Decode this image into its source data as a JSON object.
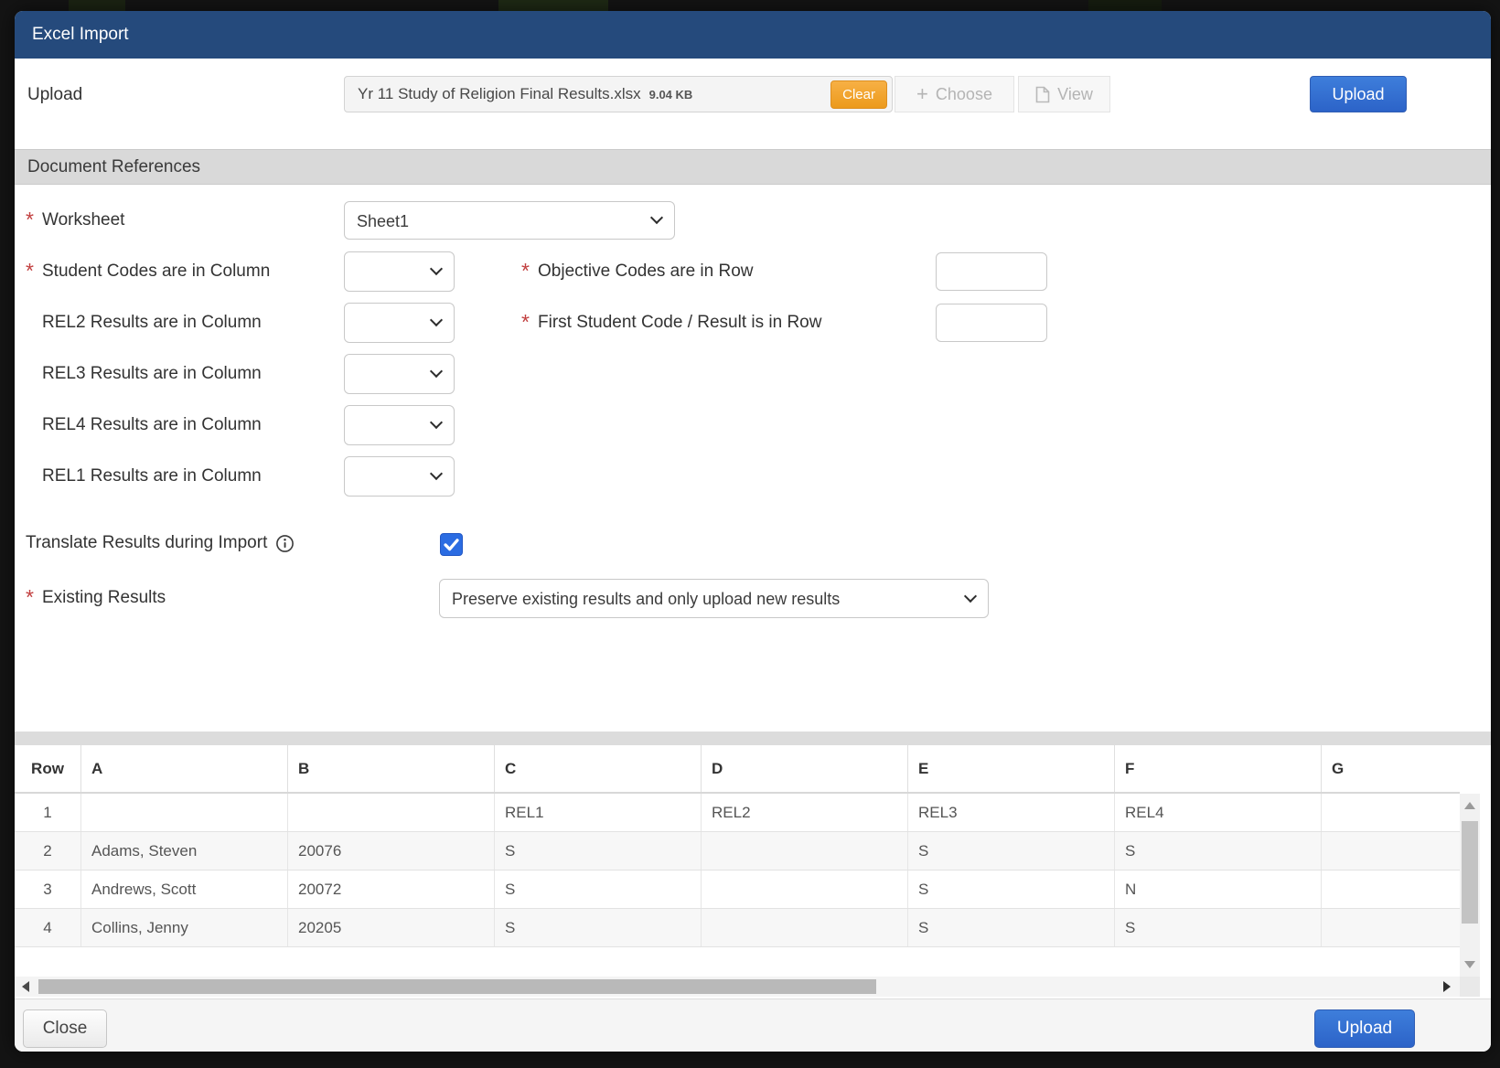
{
  "modal": {
    "title": "Excel Import"
  },
  "upload_row": {
    "label": "Upload",
    "filename": "Yr 11 Study of Religion Final Results.xlsx",
    "filesize": "9.04 KB",
    "clear_label": "Clear",
    "choose_label": "Choose",
    "view_label": "View",
    "upload_label": "Upload"
  },
  "section": {
    "title": "Document References"
  },
  "form": {
    "worksheet": {
      "label": "Worksheet",
      "value": "Sheet1"
    },
    "left_fields": [
      {
        "label": "Student Codes are in Column",
        "required": true,
        "value": ""
      },
      {
        "label": "REL2 Results are in Column",
        "required": false,
        "value": ""
      },
      {
        "label": "REL3 Results are in Column",
        "required": false,
        "value": ""
      },
      {
        "label": "REL4 Results are in Column",
        "required": false,
        "value": ""
      },
      {
        "label": "REL1 Results are in Column",
        "required": false,
        "value": ""
      }
    ],
    "right_fields": [
      {
        "label": "Objective Codes are in Row",
        "required": true,
        "value": ""
      },
      {
        "label": "First Student Code / Result is in Row",
        "required": true,
        "value": ""
      }
    ],
    "translate": {
      "label": "Translate Results during Import",
      "checked": true
    },
    "existing_results": {
      "label": "Existing Results",
      "value": "Preserve existing results and only upload new results"
    }
  },
  "preview_table": {
    "headers": [
      "Row",
      "A",
      "B",
      "C",
      "D",
      "E",
      "F",
      "G"
    ],
    "rows": [
      {
        "num": "1",
        "cells": [
          "",
          "",
          "REL1",
          "REL2",
          "REL3",
          "REL4",
          ""
        ]
      },
      {
        "num": "2",
        "cells": [
          "Adams, Steven",
          "20076",
          "S",
          "",
          "S",
          "S",
          ""
        ]
      },
      {
        "num": "3",
        "cells": [
          "Andrews, Scott",
          "20072",
          "S",
          "",
          "S",
          "N",
          ""
        ]
      },
      {
        "num": "4",
        "cells": [
          "Collins, Jenny",
          "20205",
          "S",
          "",
          "S",
          "S",
          ""
        ]
      }
    ]
  },
  "footer": {
    "close_label": "Close",
    "upload_label": "Upload"
  },
  "colors": {
    "titlebar_navy": "#254a7c",
    "primary_blue": "#2f6cce",
    "clear_orange": "#f0a12f",
    "checkbox_blue": "#2b6ce2",
    "required_red": "#c24040"
  }
}
